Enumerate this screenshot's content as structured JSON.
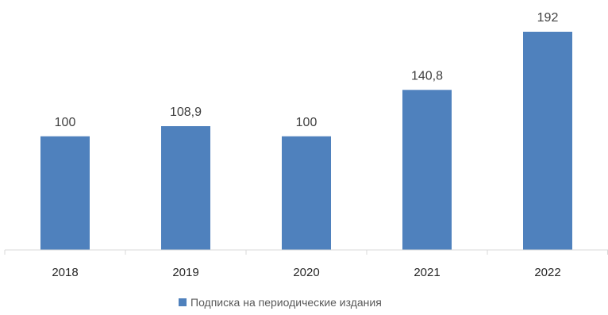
{
  "chart_data": {
    "type": "bar",
    "categories": [
      "2018",
      "2019",
      "2020",
      "2021",
      "2022"
    ],
    "series": [
      {
        "name": "Подписка на периодические  издания",
        "values": [
          100,
          108.9,
          100,
          140.8,
          192
        ],
        "labels": [
          "100",
          "108,9",
          "100",
          "140,8",
          "192"
        ],
        "color": "#4f81bd"
      }
    ],
    "title": "",
    "xlabel": "",
    "ylabel": "",
    "ylim": [
      0,
      200
    ],
    "grid": false,
    "legend": "bottom"
  }
}
